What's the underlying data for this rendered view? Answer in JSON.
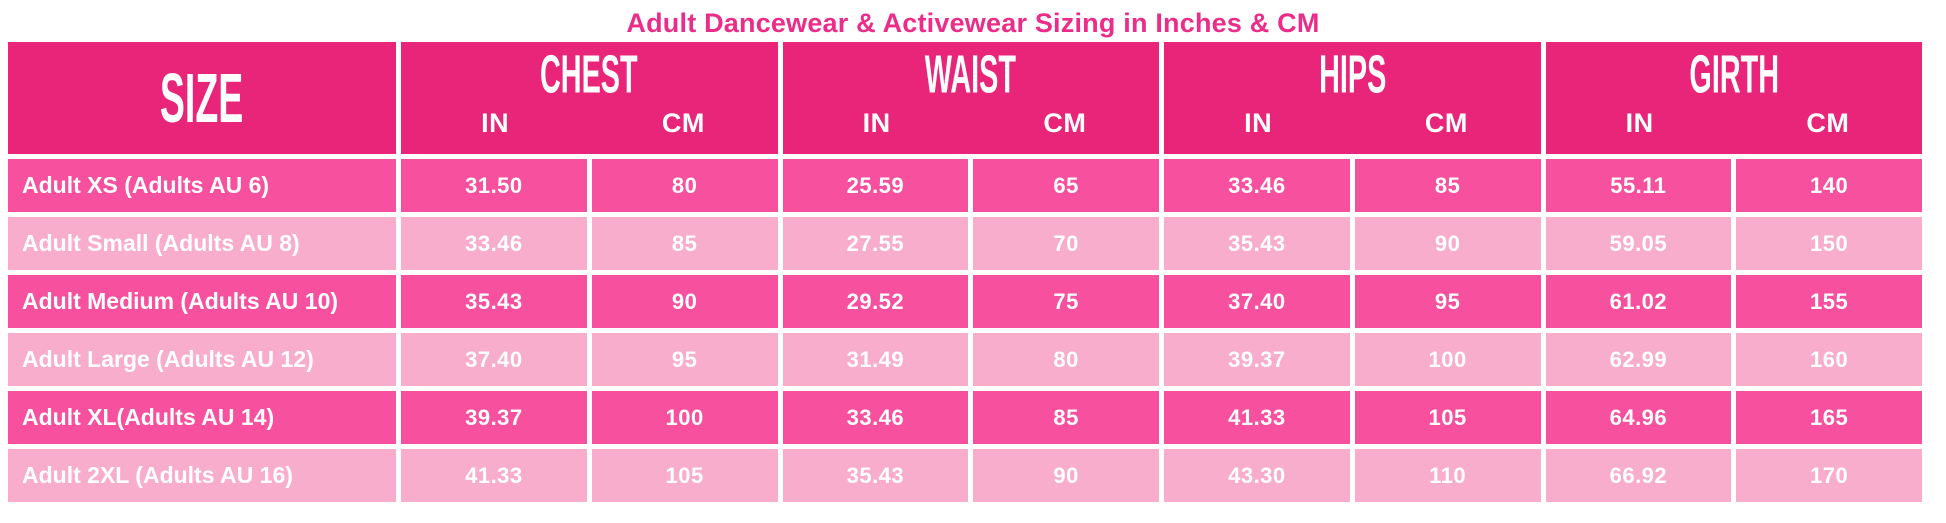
{
  "title": "Adult Dancewear & Activewear Sizing in Inches & CM",
  "colors": {
    "header_bg": "#E82579",
    "row_dark": "#F6509E",
    "row_light": "#F9ADCD",
    "title_text": "#EC2C89",
    "cell_text": "#FFFFFF"
  },
  "chart_data": {
    "type": "table",
    "title": "Adult Dancewear & Activewear Sizing in Inches & CM",
    "size_header": "SIZE",
    "groups": [
      {
        "label": "CHEST",
        "sub_in": "IN",
        "sub_cm": "CM"
      },
      {
        "label": "WAIST",
        "sub_in": "IN",
        "sub_cm": "CM"
      },
      {
        "label": "HIPS",
        "sub_in": "IN",
        "sub_cm": "CM"
      },
      {
        "label": "GIRTH",
        "sub_in": "IN",
        "sub_cm": "CM"
      }
    ],
    "columns": [
      "SIZE",
      "CHEST IN",
      "CHEST CM",
      "WAIST IN",
      "WAIST CM",
      "HIPS IN",
      "HIPS CM",
      "GIRTH IN",
      "GIRTH CM"
    ],
    "rows": [
      {
        "size": "Adult XS (Adults AU 6)",
        "chest_in": "31.50",
        "chest_cm": "80",
        "waist_in": "25.59",
        "waist_cm": "65",
        "hips_in": "33.46",
        "hips_cm": "85",
        "girth_in": "55.11",
        "girth_cm": "140"
      },
      {
        "size": "Adult Small (Adults AU 8)",
        "chest_in": "33.46",
        "chest_cm": "85",
        "waist_in": "27.55",
        "waist_cm": "70",
        "hips_in": "35.43",
        "hips_cm": "90",
        "girth_in": "59.05",
        "girth_cm": "150"
      },
      {
        "size": "Adult Medium (Adults AU 10)",
        "chest_in": "35.43",
        "chest_cm": "90",
        "waist_in": "29.52",
        "waist_cm": "75",
        "hips_in": "37.40",
        "hips_cm": "95",
        "girth_in": "61.02",
        "girth_cm": "155"
      },
      {
        "size": "Adult Large (Adults AU 12)",
        "chest_in": "37.40",
        "chest_cm": "95",
        "waist_in": "31.49",
        "waist_cm": "80",
        "hips_in": "39.37",
        "hips_cm": "100",
        "girth_in": "62.99",
        "girth_cm": "160"
      },
      {
        "size": "Adult XL(Adults AU 14)",
        "chest_in": "39.37",
        "chest_cm": "100",
        "waist_in": "33.46",
        "waist_cm": "85",
        "hips_in": "41.33",
        "hips_cm": "105",
        "girth_in": "64.96",
        "girth_cm": "165"
      },
      {
        "size": "Adult 2XL (Adults AU 16)",
        "chest_in": "41.33",
        "chest_cm": "105",
        "waist_in": "35.43",
        "waist_cm": "90",
        "hips_in": "43.30",
        "hips_cm": "110",
        "girth_in": "66.92",
        "girth_cm": "170"
      }
    ]
  }
}
